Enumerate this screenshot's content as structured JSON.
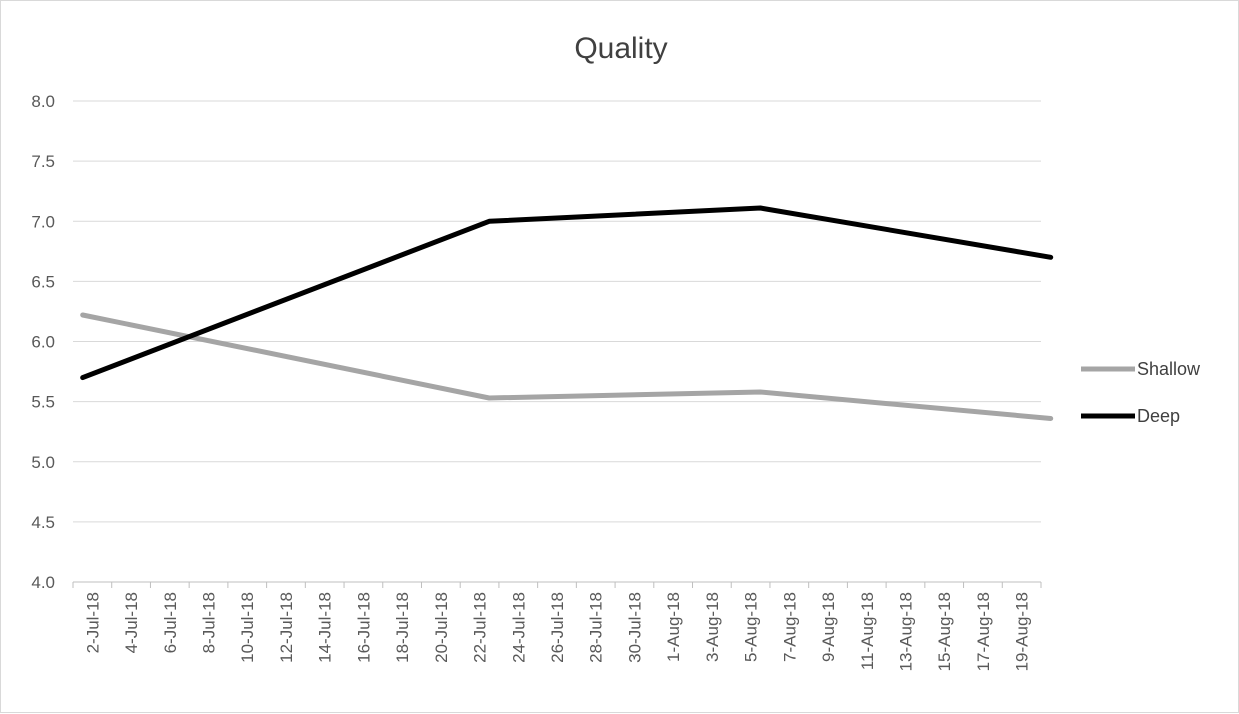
{
  "chart_data": {
    "type": "line",
    "title": "Quality",
    "xlabel": "",
    "ylabel": "",
    "ylim": [
      4.0,
      8.0
    ],
    "y_ticks": [
      "4.0",
      "4.5",
      "5.0",
      "5.5",
      "6.0",
      "6.5",
      "7.0",
      "7.5",
      "8.0"
    ],
    "x_range": [
      "2018-07-02",
      "2018-08-21"
    ],
    "x_tick_labels": [
      "2-Jul-18",
      "4-Jul-18",
      "6-Jul-18",
      "8-Jul-18",
      "10-Jul-18",
      "12-Jul-18",
      "14-Jul-18",
      "16-Jul-18",
      "18-Jul-18",
      "20-Jul-18",
      "22-Jul-18",
      "24-Jul-18",
      "26-Jul-18",
      "28-Jul-18",
      "30-Jul-18",
      "1-Aug-18",
      "3-Aug-18",
      "5-Aug-18",
      "7-Aug-18",
      "9-Aug-18",
      "11-Aug-18",
      "13-Aug-18",
      "15-Aug-18",
      "17-Aug-18",
      "19-Aug-18"
    ],
    "grid": true,
    "legend": "right",
    "series": [
      {
        "name": "Shallow",
        "color": "#a5a5a5",
        "points": [
          {
            "x": "2018-07-02",
            "y": 6.22
          },
          {
            "x": "2018-07-23",
            "y": 5.53
          },
          {
            "x": "2018-08-06",
            "y": 5.58
          },
          {
            "x": "2018-08-21",
            "y": 5.36
          }
        ]
      },
      {
        "name": "Deep",
        "color": "#000000",
        "points": [
          {
            "x": "2018-07-02",
            "y": 5.7
          },
          {
            "x": "2018-07-23",
            "y": 7.0
          },
          {
            "x": "2018-08-06",
            "y": 7.11
          },
          {
            "x": "2018-08-21",
            "y": 6.7
          }
        ]
      }
    ]
  }
}
